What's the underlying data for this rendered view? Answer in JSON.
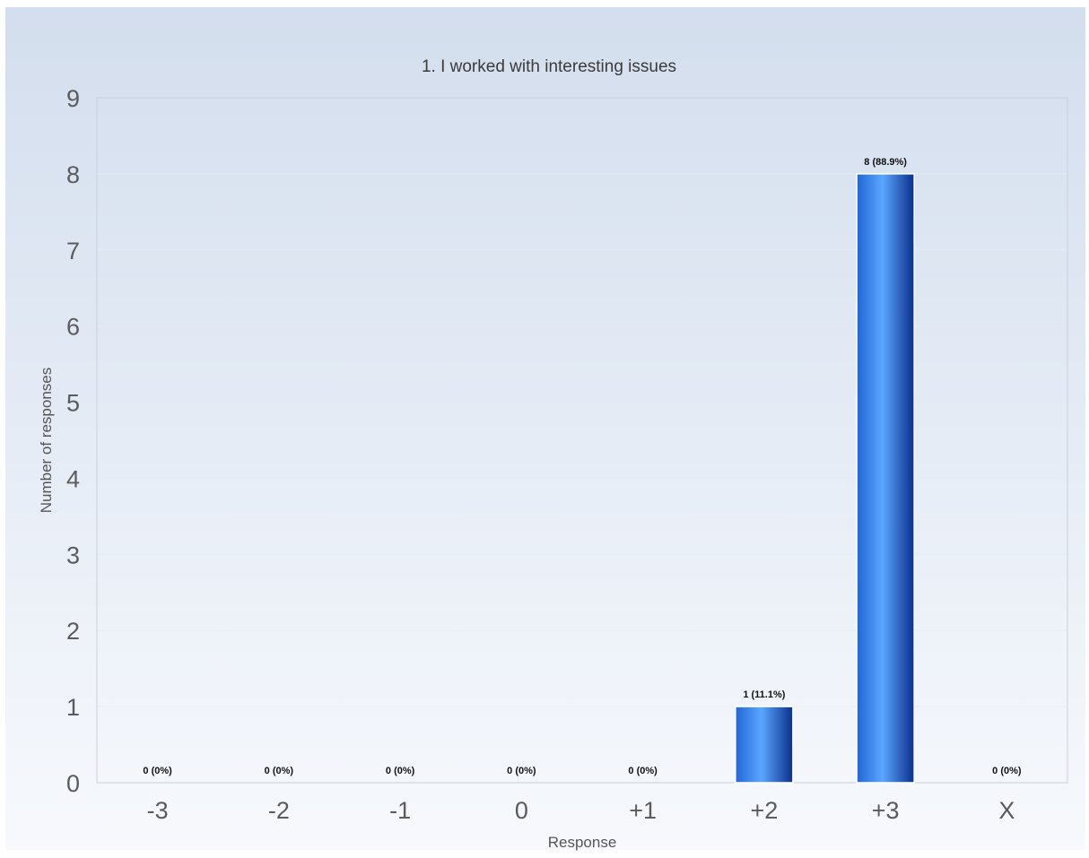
{
  "chart_data": {
    "type": "bar",
    "title": "1. I worked with interesting issues",
    "xlabel": "Response",
    "ylabel": "Number of responses",
    "categories": [
      "-3",
      "-2",
      "-1",
      "0",
      "+1",
      "+2",
      "+3",
      "X"
    ],
    "values": [
      0,
      0,
      0,
      0,
      0,
      1,
      8,
      0
    ],
    "data_labels": [
      "0 (0%)",
      "0 (0%)",
      "0 (0%)",
      "0 (0%)",
      "0 (0%)",
      "1 (11.1%)",
      "8 (88.9%)",
      "0 (0%)"
    ],
    "ylim": [
      0,
      9
    ],
    "yticks": [
      "0",
      "1",
      "2",
      "3",
      "4",
      "5",
      "6",
      "7",
      "8",
      "9"
    ],
    "grid": true,
    "colors": {
      "bar_dark": "#0a2f8c",
      "bar_mid": "#2266d6",
      "bar_light": "#5aa6ff",
      "background_top": "#d3deee",
      "background_bottom": "#f7f9fd",
      "gridline": "#e6ebf2"
    }
  }
}
